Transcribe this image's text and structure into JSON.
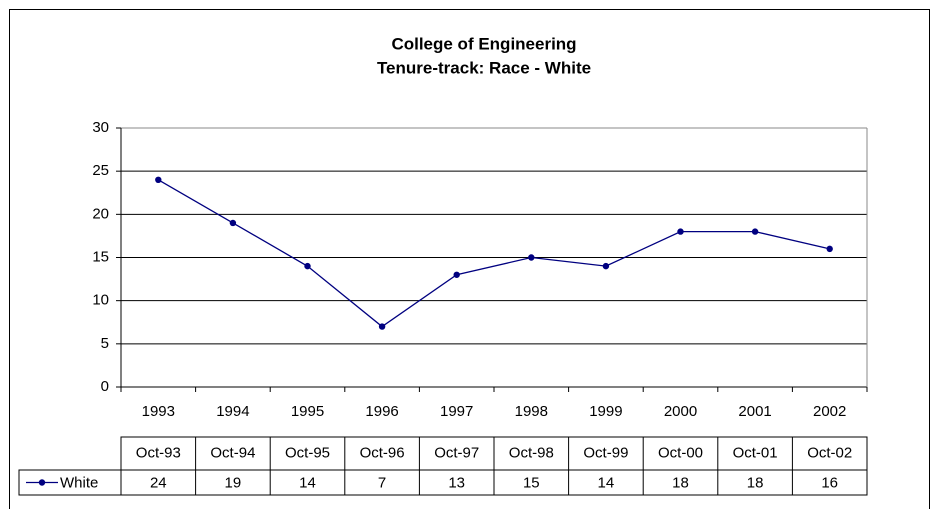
{
  "chart_data": {
    "type": "line",
    "title": [
      "College of Engineering",
      "Tenure-track: Race - White"
    ],
    "categories": [
      "1993",
      "1994",
      "1995",
      "1996",
      "1997",
      "1998",
      "1999",
      "2000",
      "2001",
      "2002"
    ],
    "table_header": [
      "Oct-93",
      "Oct-94",
      "Oct-95",
      "Oct-96",
      "Oct-97",
      "Oct-98",
      "Oct-99",
      "Oct-00",
      "Oct-01",
      "Oct-02"
    ],
    "series": [
      {
        "name": "White",
        "color": "#000080",
        "values": [
          24,
          19,
          14,
          7,
          13,
          15,
          14,
          18,
          18,
          16
        ]
      }
    ],
    "ylim": [
      0,
      30
    ],
    "yticks": [
      0,
      5,
      10,
      15,
      20,
      25,
      30
    ],
    "grid": true
  }
}
